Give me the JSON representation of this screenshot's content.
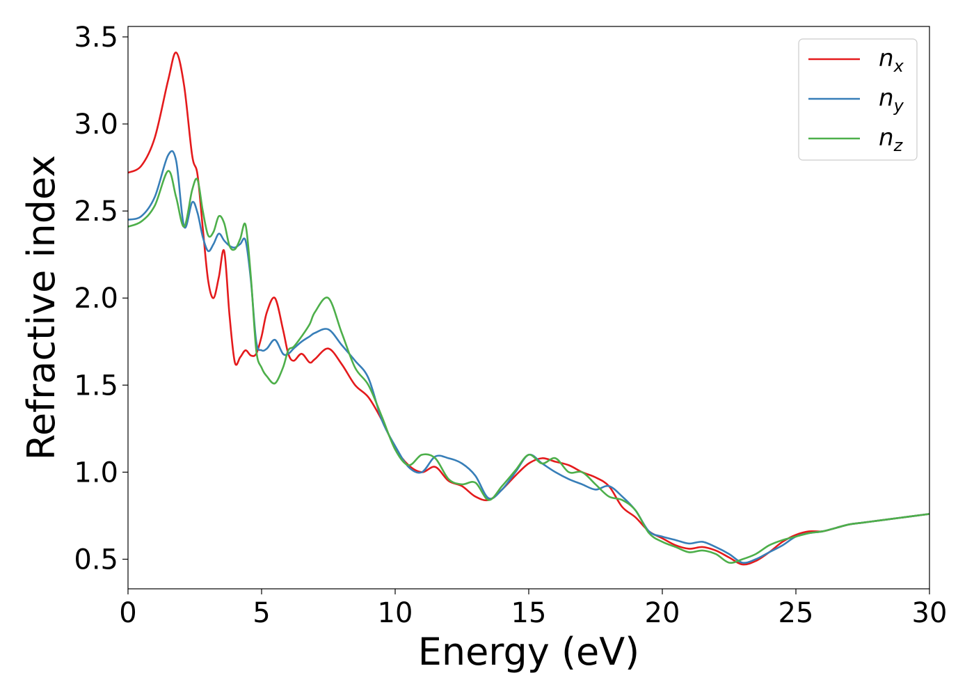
{
  "chart_data": {
    "type": "line",
    "xlabel": "Energy (eV)",
    "ylabel": "Refractive index",
    "xlim": [
      0,
      30
    ],
    "ylim": [
      0.33,
      3.56
    ],
    "xticks": [
      "0",
      "5",
      "10",
      "15",
      "20",
      "25",
      "30"
    ],
    "yticks": [
      "0.5",
      "1.0",
      "1.5",
      "2.0",
      "2.5",
      "3.0",
      "3.5"
    ],
    "grid": false,
    "legend_position": "top-right",
    "x": [
      0.0,
      0.5,
      1.0,
      1.5,
      1.8,
      2.1,
      2.4,
      2.6,
      2.8,
      3.0,
      3.2,
      3.4,
      3.6,
      3.8,
      4.0,
      4.2,
      4.4,
      4.6,
      4.8,
      5.0,
      5.2,
      5.5,
      5.8,
      6.0,
      6.2,
      6.5,
      6.8,
      7.0,
      7.5,
      8.0,
      8.5,
      9.0,
      9.5,
      10.0,
      10.5,
      11.0,
      11.5,
      12.0,
      12.5,
      13.0,
      13.5,
      14.0,
      14.5,
      15.0,
      15.5,
      16.0,
      16.5,
      17.0,
      17.5,
      18.0,
      18.5,
      19.0,
      19.5,
      20.0,
      20.5,
      21.0,
      21.5,
      22.0,
      22.5,
      23.0,
      23.5,
      24.0,
      24.5,
      25.0,
      25.5,
      26.0,
      26.5,
      27.0,
      27.5,
      28.0,
      28.5,
      29.0,
      29.5,
      30.0
    ],
    "series": [
      {
        "name": "n",
        "subscript": "x",
        "color": "#e41a1c",
        "values": [
          2.72,
          2.76,
          2.92,
          3.25,
          3.41,
          3.22,
          2.82,
          2.71,
          2.4,
          2.1,
          2.0,
          2.12,
          2.27,
          1.9,
          1.63,
          1.66,
          1.7,
          1.67,
          1.68,
          1.78,
          1.92,
          2.0,
          1.82,
          1.68,
          1.64,
          1.68,
          1.63,
          1.65,
          1.71,
          1.62,
          1.5,
          1.43,
          1.3,
          1.14,
          1.04,
          1.0,
          1.03,
          0.95,
          0.92,
          0.86,
          0.84,
          0.9,
          0.98,
          1.05,
          1.08,
          1.06,
          1.04,
          1.0,
          0.97,
          0.92,
          0.8,
          0.74,
          0.66,
          0.62,
          0.58,
          0.56,
          0.57,
          0.55,
          0.51,
          0.47,
          0.49,
          0.54,
          0.6,
          0.64,
          0.66,
          0.66,
          0.68,
          0.7,
          0.71,
          0.72,
          0.73,
          0.74,
          0.75,
          0.76
        ]
      },
      {
        "name": "n",
        "subscript": "y",
        "color": "#377eb8",
        "values": [
          2.45,
          2.47,
          2.58,
          2.82,
          2.79,
          2.41,
          2.55,
          2.49,
          2.35,
          2.27,
          2.31,
          2.37,
          2.33,
          2.3,
          2.29,
          2.31,
          2.33,
          2.1,
          1.75,
          1.7,
          1.71,
          1.76,
          1.68,
          1.68,
          1.71,
          1.75,
          1.78,
          1.8,
          1.82,
          1.73,
          1.64,
          1.54,
          1.3,
          1.15,
          1.03,
          1.0,
          1.09,
          1.08,
          1.05,
          0.98,
          0.85,
          0.9,
          1.0,
          1.1,
          1.05,
          1.0,
          0.96,
          0.93,
          0.9,
          0.92,
          0.86,
          0.78,
          0.66,
          0.63,
          0.61,
          0.59,
          0.6,
          0.57,
          0.53,
          0.48,
          0.5,
          0.54,
          0.58,
          0.63,
          0.65,
          0.66,
          0.68,
          0.7,
          0.71,
          0.72,
          0.73,
          0.74,
          0.75,
          0.76
        ]
      },
      {
        "name": "n",
        "subscript": "z",
        "color": "#4daf4a",
        "values": [
          2.41,
          2.44,
          2.53,
          2.73,
          2.58,
          2.41,
          2.62,
          2.68,
          2.5,
          2.36,
          2.38,
          2.47,
          2.43,
          2.3,
          2.28,
          2.34,
          2.42,
          2.12,
          1.7,
          1.6,
          1.55,
          1.51,
          1.6,
          1.7,
          1.72,
          1.78,
          1.85,
          1.92,
          2.0,
          1.8,
          1.6,
          1.5,
          1.32,
          1.13,
          1.04,
          1.1,
          1.08,
          0.96,
          0.93,
          0.94,
          0.84,
          0.92,
          1.01,
          1.1,
          1.05,
          1.08,
          1.0,
          1.0,
          0.93,
          0.86,
          0.84,
          0.78,
          0.65,
          0.6,
          0.57,
          0.54,
          0.55,
          0.53,
          0.48,
          0.5,
          0.53,
          0.58,
          0.61,
          0.63,
          0.65,
          0.66,
          0.68,
          0.7,
          0.71,
          0.72,
          0.73,
          0.74,
          0.75,
          0.76
        ]
      }
    ]
  }
}
